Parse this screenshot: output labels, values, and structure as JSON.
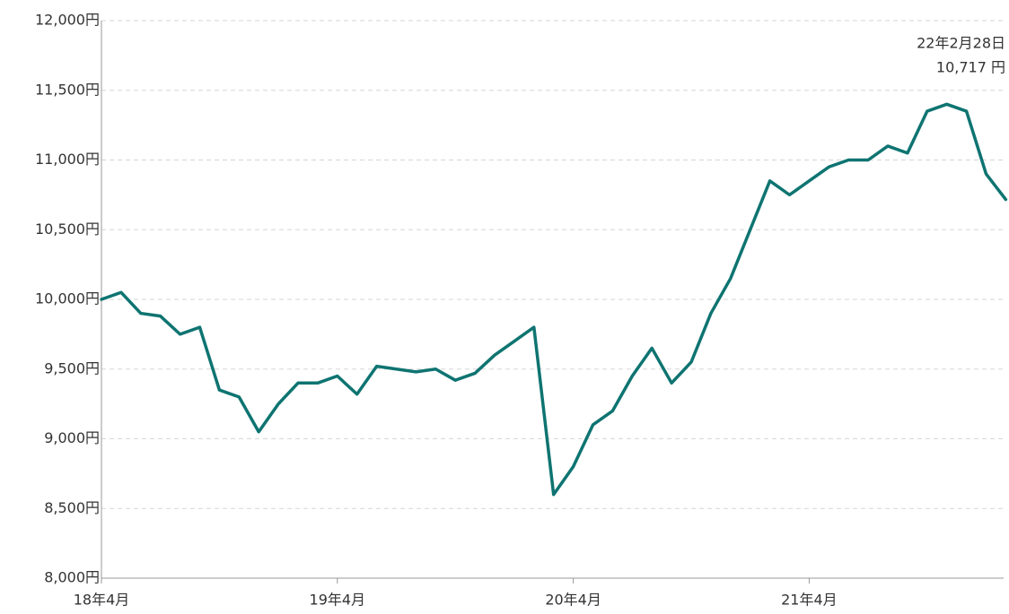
{
  "chart_data": {
    "type": "line",
    "x": [
      "2018-04",
      "2018-05",
      "2018-06",
      "2018-07",
      "2018-08",
      "2018-09",
      "2018-10",
      "2018-11",
      "2018-12",
      "2019-01",
      "2019-02",
      "2019-03",
      "2019-04",
      "2019-05",
      "2019-06",
      "2019-07",
      "2019-08",
      "2019-09",
      "2019-10",
      "2019-11",
      "2019-12",
      "2020-01",
      "2020-02",
      "2020-03",
      "2020-04",
      "2020-05",
      "2020-06",
      "2020-07",
      "2020-08",
      "2020-09",
      "2020-10",
      "2020-11",
      "2020-12",
      "2021-01",
      "2021-02",
      "2021-03",
      "2021-04",
      "2021-05",
      "2021-06",
      "2021-07",
      "2021-08",
      "2021-09",
      "2021-10",
      "2021-11",
      "2021-12",
      "2022-01",
      "2022-02"
    ],
    "series": [
      {
        "color": "#0e7471",
        "values": [
          10000,
          10050,
          9900,
          9880,
          9750,
          9800,
          9350,
          9300,
          9050,
          9250,
          9400,
          9400,
          9450,
          9320,
          9520,
          9500,
          9480,
          9500,
          9420,
          9470,
          9600,
          9700,
          9800,
          8600,
          8800,
          9100,
          9200,
          9450,
          9650,
          9400,
          9550,
          9900,
          10150,
          10500,
          10850,
          10750,
          10850,
          10950,
          11000,
          11000,
          11100,
          11050,
          11350,
          11400,
          11350,
          10900,
          10717
        ]
      }
    ],
    "ylim": [
      8000,
      12000
    ],
    "yticks": [
      {
        "value": 8000,
        "label": "8,000円"
      },
      {
        "value": 8500,
        "label": "8,500円"
      },
      {
        "value": 9000,
        "label": "9,000円"
      },
      {
        "value": 9500,
        "label": "9,500円"
      },
      {
        "value": 10000,
        "label": "10,000円"
      },
      {
        "value": 10500,
        "label": "10,500円"
      },
      {
        "value": 11000,
        "label": "11,000円"
      },
      {
        "value": 11500,
        "label": "11,500円"
      },
      {
        "value": 12000,
        "label": "12,000円"
      }
    ],
    "xticks": [
      {
        "value": "2018-04",
        "label": "18年4月"
      },
      {
        "value": "2019-04",
        "label": "19年4月"
      },
      {
        "value": "2020-04",
        "label": "20年4月"
      },
      {
        "value": "2021-04",
        "label": "21年4月"
      }
    ],
    "grid": true,
    "annotation": {
      "date_label": "22年2月28日",
      "value": 10717,
      "value_label": "10,717 円"
    }
  }
}
